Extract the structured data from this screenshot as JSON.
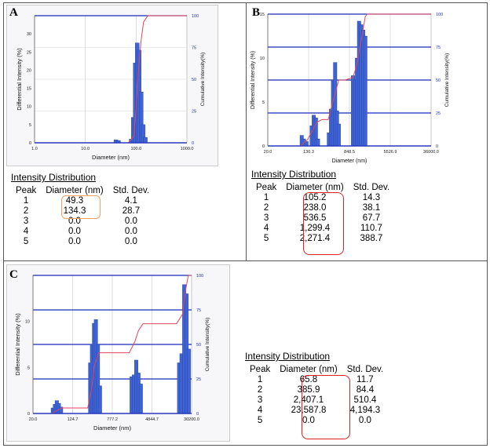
{
  "panels": [
    {
      "label": "A",
      "chart_data": {
        "type": "bar",
        "xscale": "log",
        "xlim": [
          1,
          1000
        ],
        "x_ticks": [
          "1.0",
          "10.0",
          "100.0",
          "1000.0"
        ],
        "xlabel": "Diameter (nm)",
        "ylabel": "Differential Intensity (%)",
        "ylim": [
          0,
          35
        ],
        "y_ticks": [
          "0",
          "5",
          "10",
          "15",
          "20",
          "25",
          "30"
        ],
        "y2label": "Cumulative Intensity(%)",
        "y2_ticks": [
          "0",
          "25",
          "50",
          "75",
          "100"
        ],
        "bars": [
          {
            "x": 40,
            "y": 0.8
          },
          {
            "x": 45,
            "y": 0.6
          },
          {
            "x": 80,
            "y": 1.0
          },
          {
            "x": 88,
            "y": 7
          },
          {
            "x": 96,
            "y": 22
          },
          {
            "x": 105,
            "y": 27.5
          },
          {
            "x": 115,
            "y": 25.5
          },
          {
            "x": 126,
            "y": 14
          },
          {
            "x": 138,
            "y": 5
          },
          {
            "x": 152,
            "y": 1.5
          }
        ],
        "cumulative": [
          [
            1,
            0
          ],
          [
            70,
            0
          ],
          [
            90,
            5
          ],
          [
            100,
            28
          ],
          [
            110,
            55
          ],
          [
            125,
            80
          ],
          [
            140,
            95
          ],
          [
            170,
            100
          ],
          [
            1000,
            100
          ]
        ]
      },
      "table": {
        "title": "Intensity Distribution",
        "headers": [
          "Peak",
          "Diameter (nm)",
          "Std. Dev."
        ],
        "rows": [
          [
            "1",
            "49.3",
            "4.1"
          ],
          [
            "2",
            "134.3",
            "28.7"
          ],
          [
            "3",
            "0.0",
            "0.0"
          ],
          [
            "4",
            "0.0",
            "0.0"
          ],
          [
            "5",
            "0.0",
            "0.0"
          ]
        ]
      }
    },
    {
      "label": "B",
      "chart_data": {
        "type": "bar",
        "xscale": "log",
        "xlim": [
          20,
          36000
        ],
        "x_ticks": [
          "20.0",
          "130.3",
          "848.5",
          "5526.9",
          "36000.0"
        ],
        "xlabel": "Diameter (nm)",
        "ylabel": "Differential Intensity (%)",
        "ylim": [
          0,
          15
        ],
        "y_ticks": [
          "0",
          "5",
          "10",
          "15"
        ],
        "y2label": "Cumulative Intensity(%)",
        "y2_ticks": [
          "0",
          "25",
          "50",
          "75",
          "100"
        ],
        "bars": [
          {
            "x": 95,
            "y": 1.2
          },
          {
            "x": 105,
            "y": 0.8
          },
          {
            "x": 118,
            "y": 0.5
          },
          {
            "x": 150,
            "y": 2.3
          },
          {
            "x": 165,
            "y": 3.5
          },
          {
            "x": 182,
            "y": 3.2
          },
          {
            "x": 200,
            "y": 0.8
          },
          {
            "x": 330,
            "y": 1.5
          },
          {
            "x": 365,
            "y": 4.2
          },
          {
            "x": 400,
            "y": 7.5
          },
          {
            "x": 440,
            "y": 9.5
          },
          {
            "x": 480,
            "y": 4
          },
          {
            "x": 520,
            "y": 2.5
          },
          {
            "x": 1000,
            "y": 8
          },
          {
            "x": 1100,
            "y": 7.5
          },
          {
            "x": 1200,
            "y": 10
          },
          {
            "x": 1320,
            "y": 14.2
          },
          {
            "x": 1450,
            "y": 13.8
          },
          {
            "x": 1600,
            "y": 13.2
          },
          {
            "x": 1760,
            "y": 12.5
          }
        ],
        "cumulative": [
          [
            20,
            0
          ],
          [
            90,
            0
          ],
          [
            125,
            5
          ],
          [
            190,
            18
          ],
          [
            240,
            20
          ],
          [
            320,
            20
          ],
          [
            440,
            40
          ],
          [
            520,
            50
          ],
          [
            700,
            50
          ],
          [
            1000,
            52
          ],
          [
            1200,
            62
          ],
          [
            1450,
            80
          ],
          [
            1750,
            98
          ],
          [
            1900,
            100
          ],
          [
            36000,
            100
          ]
        ]
      },
      "table": {
        "title": "Intensity Distribution",
        "headers": [
          "Peak",
          "Diameter (nm)",
          "Std. Dev."
        ],
        "rows": [
          [
            "1",
            "105.2",
            "14.3"
          ],
          [
            "2",
            "238.0",
            "38.1"
          ],
          [
            "3",
            "536.5",
            "67.7"
          ],
          [
            "4",
            "1,299.4",
            "110.7"
          ],
          [
            "5",
            "2,271.4",
            "388.7"
          ]
        ]
      }
    },
    {
      "label": "C",
      "chart_data": {
        "type": "bar",
        "xscale": "log",
        "xlim": [
          20,
          30200
        ],
        "x_ticks": [
          "20.0",
          "124.7",
          "777.2",
          "4844.7",
          "30200.0"
        ],
        "xlabel": "Diameter (nm)",
        "ylabel": "Differential Intensity (%)",
        "ylim": [
          0,
          15
        ],
        "y_ticks": [
          "0",
          "5",
          "10"
        ],
        "y2label": "Cumulative Intensity(%)",
        "y2_ticks": [
          "0",
          "25",
          "50",
          "75",
          "100"
        ],
        "bars": [
          {
            "x": 50,
            "y": 0.6
          },
          {
            "x": 55,
            "y": 1.0
          },
          {
            "x": 60,
            "y": 1.4
          },
          {
            "x": 66,
            "y": 1.1
          },
          {
            "x": 73,
            "y": 0.7
          },
          {
            "x": 280,
            "y": 5.5
          },
          {
            "x": 305,
            "y": 7.5
          },
          {
            "x": 335,
            "y": 9.8
          },
          {
            "x": 365,
            "y": 10.2
          },
          {
            "x": 400,
            "y": 7.5
          },
          {
            "x": 440,
            "y": 3
          },
          {
            "x": 1900,
            "y": 4
          },
          {
            "x": 2100,
            "y": 4.2
          },
          {
            "x": 2350,
            "y": 5.8
          },
          {
            "x": 2600,
            "y": 4.4
          },
          {
            "x": 2900,
            "y": 3.2
          },
          {
            "x": 17000,
            "y": 5.5
          },
          {
            "x": 19000,
            "y": 6.5
          },
          {
            "x": 21500,
            "y": 14
          },
          {
            "x": 24000,
            "y": 13
          },
          {
            "x": 26500,
            "y": 7
          }
        ],
        "cumulative": [
          [
            20,
            0
          ],
          [
            48,
            0
          ],
          [
            60,
            2
          ],
          [
            75,
            4
          ],
          [
            250,
            4
          ],
          [
            300,
            18
          ],
          [
            340,
            35
          ],
          [
            420,
            44
          ],
          [
            1700,
            44
          ],
          [
            2200,
            52
          ],
          [
            2600,
            60
          ],
          [
            3200,
            65
          ],
          [
            15000,
            65
          ],
          [
            20000,
            72
          ],
          [
            23000,
            90
          ],
          [
            26000,
            100
          ],
          [
            30200,
            100
          ]
        ]
      },
      "table": {
        "title": "Intensity Distribution",
        "headers": [
          "Peak",
          "Diameter (nm)",
          "Std. Dev."
        ],
        "rows": [
          [
            "1",
            "65.8",
            "11.7"
          ],
          [
            "2",
            "385.9",
            "84.4"
          ],
          [
            "3",
            "2,407.1",
            "510.4"
          ],
          [
            "4",
            "23,587.8",
            "4,194.3"
          ],
          [
            "5",
            "0.0",
            "0.0"
          ]
        ]
      }
    }
  ],
  "colors": {
    "bar": "#3f63d4",
    "bar_edge": "#1f3f9e",
    "cumulative_line": "#e0465c",
    "axis_blue": "#2233bb",
    "gridline_blue": "#1a2ab8",
    "highlight_orange": "#f0a060",
    "highlight_red": "#e02020"
  }
}
